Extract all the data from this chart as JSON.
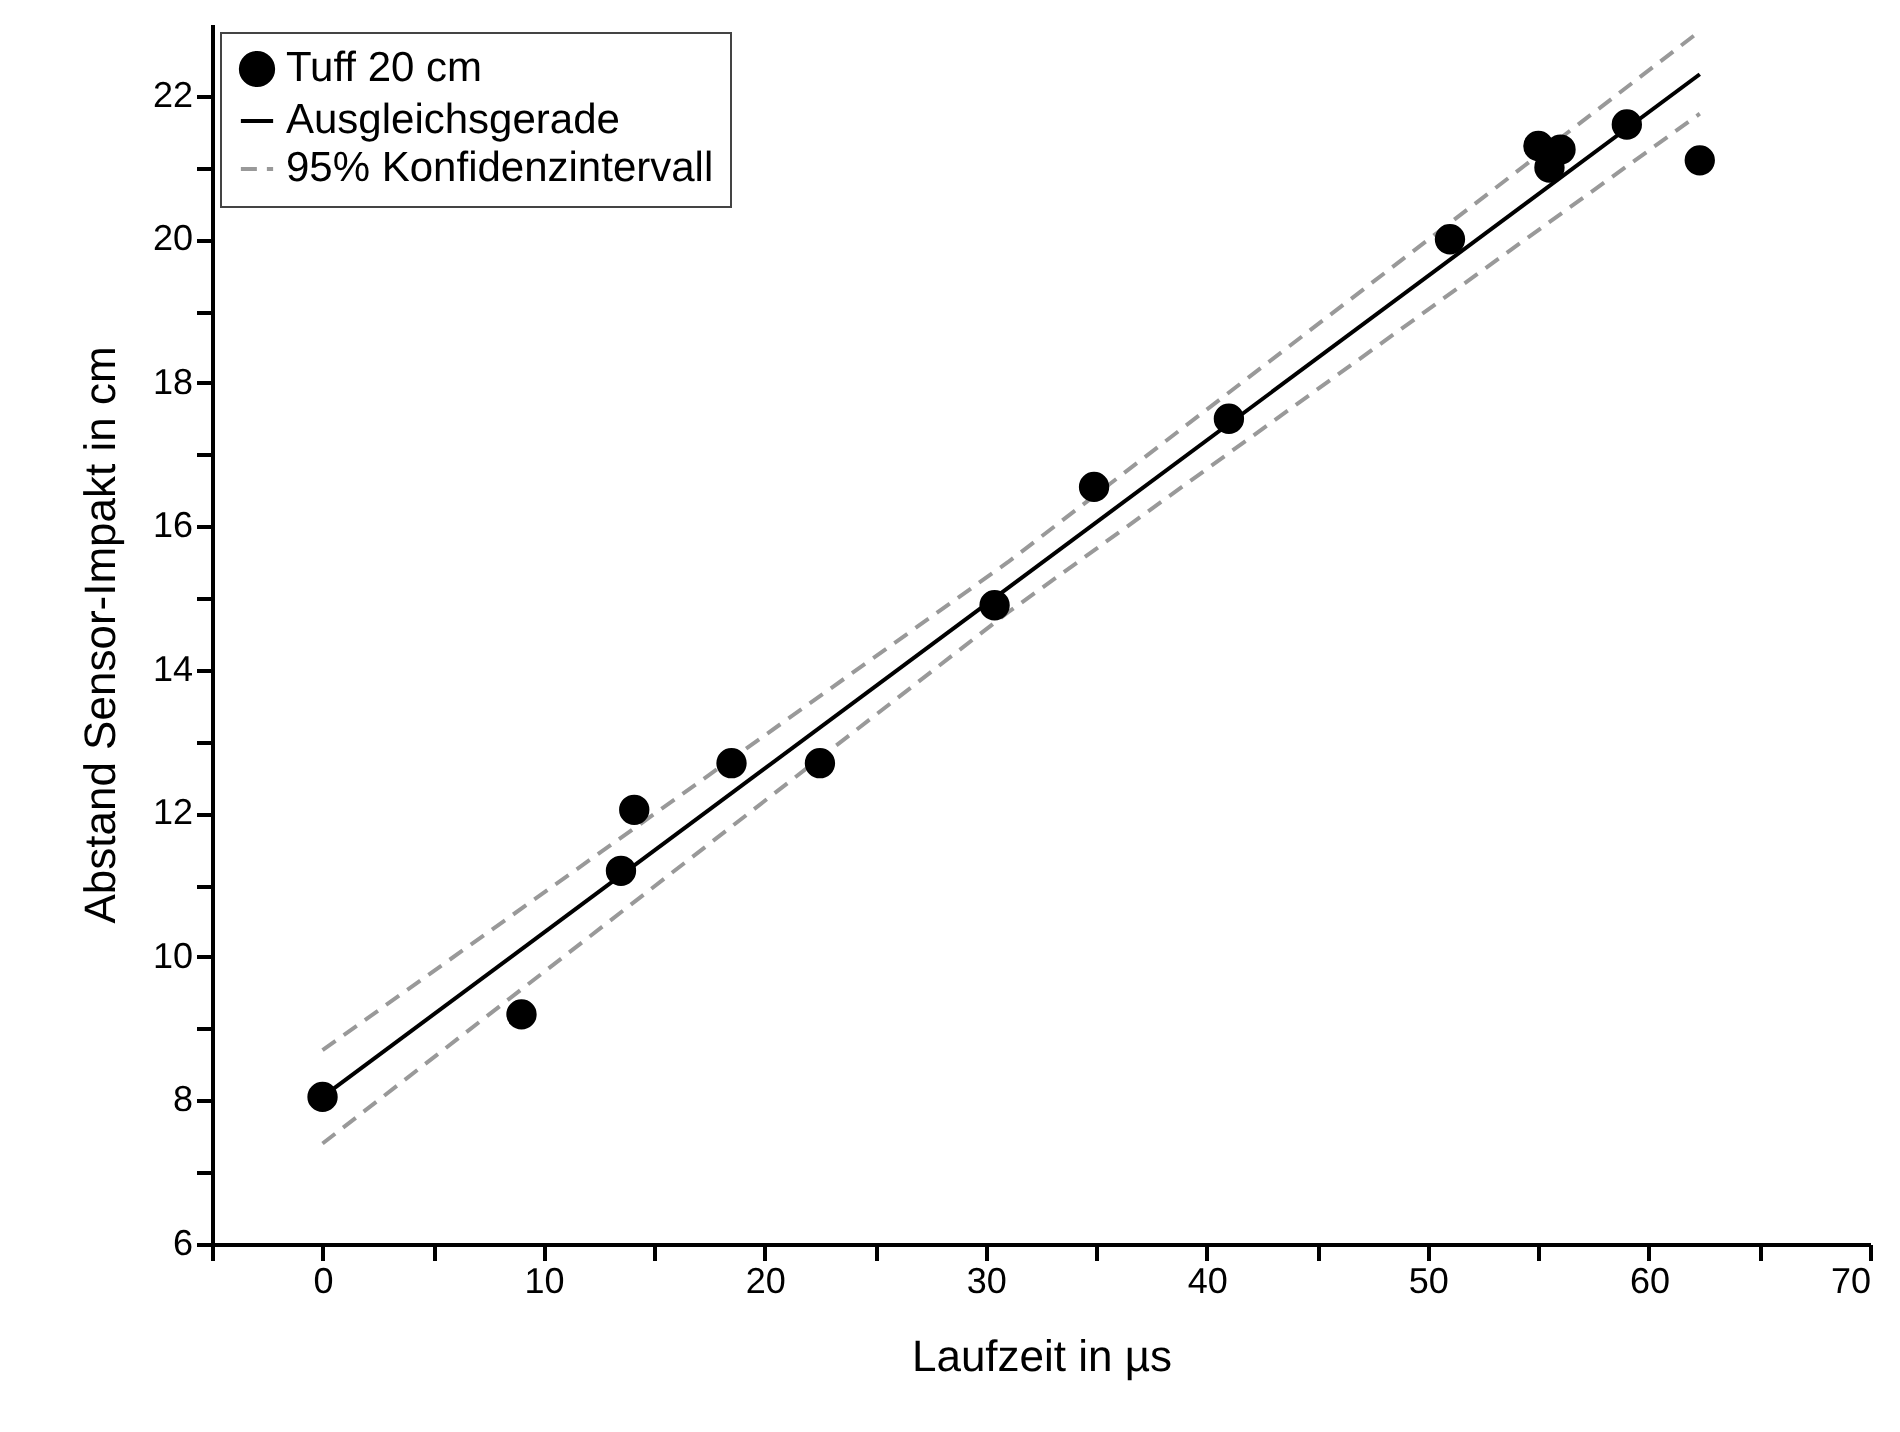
{
  "chart_data": {
    "type": "scatter",
    "xlabel": "Laufzeit in µs",
    "ylabel": "Abstand Sensor-Impakt in cm",
    "xlim": [
      -5,
      70
    ],
    "ylim": [
      6,
      23
    ],
    "xticks": [
      {
        "value": -5,
        "label": null
      },
      0,
      {
        "value": 5,
        "label": null
      },
      10,
      {
        "value": 15,
        "label": null
      },
      20,
      {
        "value": 25,
        "label": null
      },
      30,
      {
        "value": 35,
        "label": null
      },
      40,
      {
        "value": 45,
        "label": null
      },
      50,
      {
        "value": 55,
        "label": null
      },
      60,
      {
        "value": 65,
        "label": null
      },
      70
    ],
    "yticks": [
      6,
      {
        "value": 7,
        "label": null
      },
      8,
      {
        "value": 9,
        "label": null
      },
      10,
      {
        "value": 11,
        "label": null
      },
      12,
      {
        "value": 13,
        "label": null
      },
      14,
      {
        "value": 15,
        "label": null
      },
      16,
      {
        "value": 17,
        "label": null
      },
      18,
      {
        "value": 19,
        "label": null
      },
      20,
      {
        "value": 21,
        "label": null
      },
      22
    ],
    "grid": false,
    "legend": "top left",
    "series": [
      {
        "name": "Tuff 20 cm",
        "marker": "circle",
        "color": "#000000",
        "x": [
          0,
          9,
          13.5,
          14.1,
          18.5,
          22.5,
          30.4,
          34.9,
          41,
          51,
          55,
          55.5,
          56,
          59,
          62.3
        ],
        "values": [
          8.05,
          9.2,
          11.2,
          12.05,
          12.7,
          12.7,
          14.9,
          16.55,
          17.5,
          20.0,
          21.3,
          21.0,
          21.25,
          21.6,
          21.1
        ]
      },
      {
        "name": "Ausgleichsgerade",
        "type": "line",
        "line_style": "solid",
        "color": "#000000",
        "x": [
          0,
          62.3
        ],
        "values": [
          8.05,
          22.3
        ]
      },
      {
        "name": "95% Konfidenzintervall",
        "type": "line",
        "line_style": "dashed",
        "color": "#999999",
        "x": [
          0,
          31,
          62.3
        ],
        "values": [
          8.7,
          15.5,
          22.9
        ]
      },
      {
        "type": "line",
        "line_style": "dashed",
        "color": "#999999",
        "x": [
          0,
          31,
          62.3
        ],
        "values": [
          7.4,
          14.8,
          21.75
        ]
      }
    ]
  }
}
